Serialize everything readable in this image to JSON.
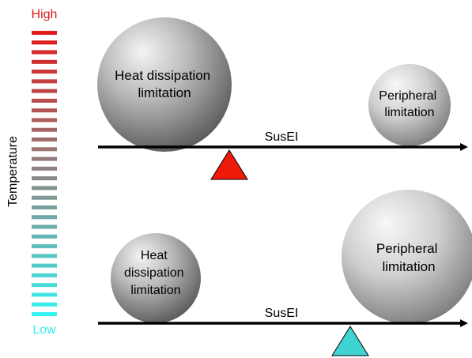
{
  "temperature_scale": {
    "high_label": "High",
    "low_label": "Low",
    "axis_label": "Temperature",
    "high_color": "#e3191c",
    "low_color": "#35f2ee",
    "bar_count": 30
  },
  "top_scenario": {
    "left_ball_lines": [
      "Heat dissipation",
      "limitation"
    ],
    "right_ball_lines": [
      "Peripheral",
      "limitation"
    ],
    "beam_label": "SusEI",
    "fulcrum_color": "#f01a0a"
  },
  "bottom_scenario": {
    "left_ball_lines": [
      "Heat",
      "dissipation",
      "limitation"
    ],
    "right_ball_lines": [
      "Peripheral",
      "limitation"
    ],
    "beam_label": "SusEI",
    "fulcrum_color": "#3fd4d2"
  }
}
